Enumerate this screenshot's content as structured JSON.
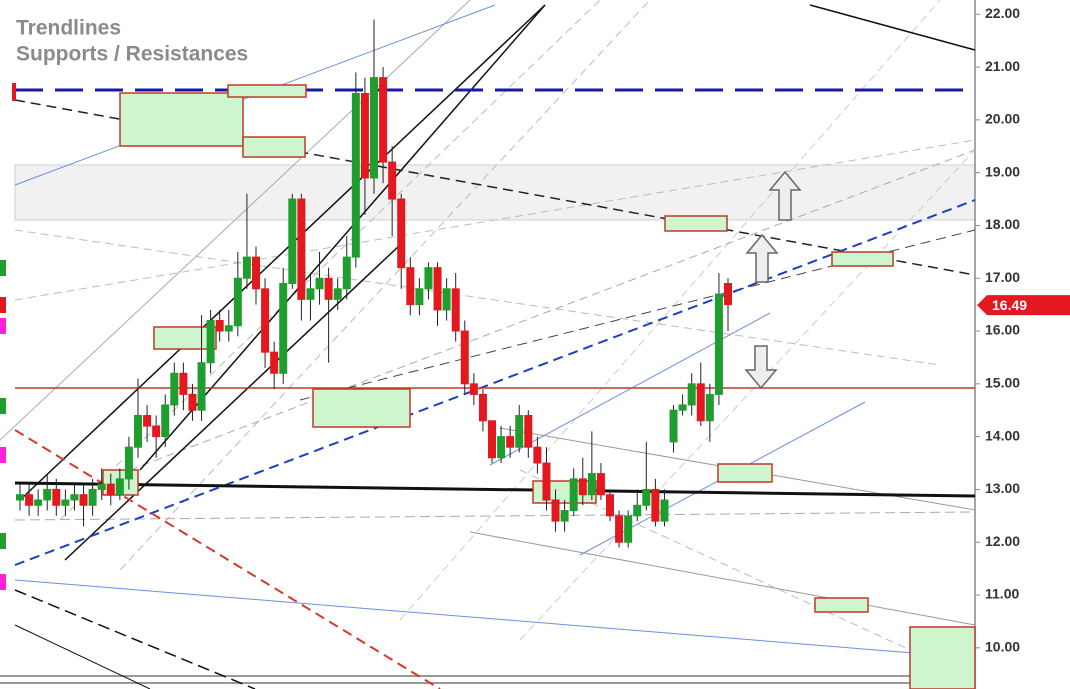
{
  "chart_data": {
    "type": "candlestick",
    "title": "Trendlines",
    "subtitle": "Supports / Resistances",
    "ylim": [
      9.22,
      22.27
    ],
    "yticks": [
      {
        "value": 10,
        "label": "10.00"
      },
      {
        "value": 11,
        "label": "11.00"
      },
      {
        "value": 12,
        "label": "12.00"
      },
      {
        "value": 13,
        "label": "13.00"
      },
      {
        "value": 14,
        "label": "14.00"
      },
      {
        "value": 15,
        "label": "15.00"
      },
      {
        "value": 16,
        "label": "16.00"
      },
      {
        "value": 17,
        "label": "17.00"
      },
      {
        "value": 18,
        "label": "18.00"
      },
      {
        "value": 19,
        "label": "19.00"
      },
      {
        "value": 20,
        "label": "20.00"
      },
      {
        "value": 21,
        "label": "21.00"
      },
      {
        "value": 22,
        "label": "22.00"
      }
    ],
    "last_price": 16.49,
    "up_color": "#1f9e2f",
    "down_color": "#e3191f",
    "open": [
      12.8,
      12.9,
      12.7,
      12.8,
      13.0,
      12.7,
      12.8,
      12.9,
      12.7,
      13.0,
      13.1,
      12.9,
      13.2,
      13.8,
      14.4,
      14.2,
      14.0,
      14.6,
      15.2,
      14.8,
      14.5,
      15.4,
      16.2,
      16.0,
      16.1,
      17.0,
      17.4,
      16.8,
      15.6,
      15.2,
      16.9,
      18.5,
      16.6,
      16.8,
      17.0,
      16.6,
      16.8,
      17.4,
      20.5,
      18.9,
      20.8,
      19.2,
      18.5,
      17.2,
      16.5,
      16.8,
      17.2,
      16.4,
      16.8,
      16.0,
      15.0,
      14.8,
      14.3,
      13.6,
      14.0,
      13.8,
      14.4,
      13.8,
      13.5,
      12.8,
      12.4,
      12.6,
      13.2,
      12.9,
      13.3,
      12.9,
      12.5,
      12.0,
      12.5,
      12.7,
      13.0,
      12.4,
      13.9,
      14.5,
      14.6,
      15.0,
      14.3,
      14.8,
      16.9
    ],
    "high": [
      13.1,
      13.1,
      13.0,
      13.3,
      13.2,
      13.0,
      13.1,
      13.1,
      13.2,
      13.4,
      13.3,
      13.4,
      14.0,
      15.1,
      14.6,
      14.4,
      14.8,
      15.4,
      15.4,
      15.0,
      16.3,
      16.4,
      16.4,
      16.4,
      17.5,
      18.6,
      17.6,
      17.0,
      15.8,
      17.2,
      18.6,
      18.6,
      17.1,
      17.5,
      17.2,
      17.0,
      17.8,
      20.9,
      20.8,
      21.9,
      21.0,
      19.5,
      18.6,
      17.4,
      17.0,
      17.3,
      17.3,
      17.0,
      17.1,
      16.2,
      15.2,
      14.9,
      14.3,
      14.2,
      14.2,
      14.6,
      14.5,
      14.0,
      13.8,
      13.0,
      12.8,
      13.4,
      13.6,
      14.1,
      13.5,
      13.0,
      12.6,
      12.6,
      13.0,
      13.9,
      13.2,
      13.0,
      14.6,
      14.8,
      15.2,
      15.4,
      15.0,
      17.1,
      17.0
    ],
    "low": [
      12.6,
      12.5,
      12.5,
      12.6,
      12.5,
      12.5,
      12.6,
      12.3,
      12.5,
      12.8,
      12.7,
      12.8,
      13.0,
      13.6,
      13.9,
      13.6,
      13.8,
      14.4,
      14.5,
      14.3,
      14.3,
      15.2,
      15.8,
      15.8,
      15.9,
      16.8,
      16.5,
      15.3,
      14.9,
      15.0,
      16.8,
      16.2,
      16.2,
      16.5,
      15.4,
      16.4,
      16.6,
      17.2,
      18.2,
      18.6,
      18.8,
      17.8,
      16.8,
      16.3,
      16.3,
      16.6,
      16.1,
      16.2,
      15.8,
      14.8,
      14.6,
      14.1,
      13.5,
      13.5,
      13.6,
      13.7,
      13.6,
      13.3,
      12.6,
      12.2,
      12.2,
      12.5,
      12.7,
      12.8,
      12.8,
      12.4,
      11.9,
      11.9,
      12.4,
      12.6,
      12.3,
      12.3,
      13.7,
      14.4,
      14.4,
      14.2,
      13.9,
      14.6,
      16.0
    ],
    "close": [
      12.9,
      12.7,
      12.8,
      13.0,
      12.7,
      12.8,
      12.9,
      12.7,
      13.0,
      13.1,
      12.9,
      13.2,
      13.8,
      14.4,
      14.2,
      14.0,
      14.6,
      15.2,
      14.8,
      14.5,
      15.4,
      16.2,
      16.0,
      16.1,
      17.0,
      17.4,
      16.8,
      15.6,
      15.2,
      16.9,
      18.5,
      16.6,
      16.8,
      17.0,
      16.6,
      16.8,
      17.4,
      20.5,
      18.9,
      20.8,
      19.2,
      18.5,
      17.2,
      16.5,
      16.8,
      17.2,
      16.4,
      16.8,
      16.0,
      15.0,
      14.8,
      14.3,
      13.6,
      14.0,
      13.8,
      14.4,
      13.8,
      13.5,
      12.8,
      12.4,
      12.6,
      13.2,
      12.9,
      13.3,
      12.9,
      12.5,
      12.0,
      12.5,
      12.7,
      13.0,
      12.4,
      12.8,
      14.5,
      14.6,
      15.0,
      14.3,
      14.8,
      16.7,
      16.5
    ]
  }
}
